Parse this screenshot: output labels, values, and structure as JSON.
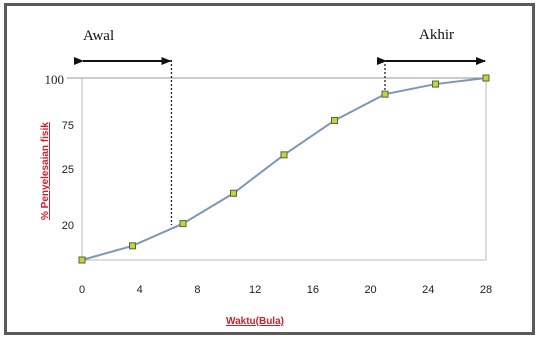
{
  "chart_data": {
    "type": "line",
    "title": "",
    "xlabel": "Waktu(Bula)",
    "ylabel": "% Penyelesaian  fisik",
    "x_ticks": [
      "0",
      "4",
      "8",
      "12",
      "16",
      "20",
      "24",
      "28"
    ],
    "y_ticks": [
      "100",
      "75",
      "25",
      "20"
    ],
    "xlim": [
      0,
      28
    ],
    "series": [
      {
        "x": [
          0,
          3.5,
          7,
          10.5,
          14,
          17.5,
          21,
          24.5,
          28
        ],
        "y": [
          0,
          7,
          18,
          33,
          52,
          69,
          82,
          87,
          90
        ]
      }
    ],
    "annotations": {
      "start_label": "Awal",
      "end_label": "Akhir",
      "start_line_x": 6.2,
      "end_line_x": 21
    },
    "colors": {
      "line": "#7d97b6",
      "marker_fill": "#c8d23c",
      "marker_edge": "#4a6a3a",
      "axis_label": "#d21e2a"
    }
  }
}
